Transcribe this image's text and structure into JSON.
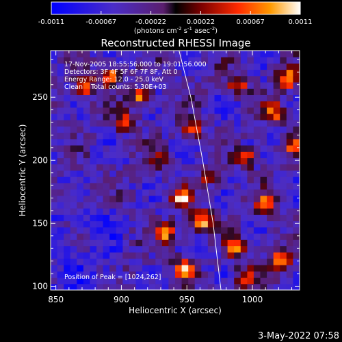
{
  "chart_data": {
    "type": "heatmap",
    "title": "Reconstructed RHESSI Image",
    "xlabel": "Heliocentric X (arcsec)",
    "ylabel": "Heliocentric Y (arcsec)",
    "xlim": [
      846,
      1036
    ],
    "ylim": [
      97,
      287
    ],
    "x_ticks": [
      850,
      900,
      950,
      1000
    ],
    "y_ticks": [
      100,
      150,
      200,
      250
    ],
    "colorbar": {
      "ticks": [
        "-0.0011",
        "-0.00067",
        "-0.00022",
        "0.00022",
        "0.00067",
        "0.0011"
      ],
      "unit_main": "(photons cm",
      "unit_sup1": "-2",
      "unit_mid1": " s",
      "unit_sup2": "-1",
      "unit_mid2": " asec",
      "unit_sup3": "-2",
      "unit_end": ")",
      "range": [
        -0.0011,
        0.0011
      ]
    },
    "annotations": {
      "time": "17-Nov-2005 18:55:56.000 to 19:01:56.000",
      "detectors": "Detectors: 3F 4F 5F 6F 7F 8F, Att 0",
      "energy": "Energy Range: 12.0 - 25.0 keV",
      "clean": "Clean    Total counts: 5.30E+03",
      "peak": "Position of Peak = [1024,262]"
    },
    "limb_curve": [
      [
        944,
        287
      ],
      [
        953,
        250
      ],
      [
        962,
        200
      ],
      [
        970,
        150
      ],
      [
        976,
        97
      ]
    ],
    "emission_sources": [
      {
        "x": 888,
        "y": 265,
        "value": 0.0009
      },
      {
        "x": 870,
        "y": 256,
        "value": 0.0007
      },
      {
        "x": 912,
        "y": 248,
        "value": 0.0008
      },
      {
        "x": 986,
        "y": 258,
        "value": 0.0006
      },
      {
        "x": 1024,
        "y": 262,
        "value": 0.0011
      },
      {
        "x": 1013,
        "y": 236,
        "value": 0.0008
      },
      {
        "x": 951,
        "y": 222,
        "value": 0.0006
      },
      {
        "x": 993,
        "y": 200,
        "value": 0.0006
      },
      {
        "x": 900,
        "y": 228,
        "value": 0.0005
      },
      {
        "x": 944,
        "y": 168,
        "value": 0.0009
      },
      {
        "x": 958,
        "y": 150,
        "value": 0.0011
      },
      {
        "x": 932,
        "y": 140,
        "value": 0.0008
      },
      {
        "x": 946,
        "y": 112,
        "value": 0.0008
      },
      {
        "x": 985,
        "y": 128,
        "value": 0.0007
      },
      {
        "x": 1008,
        "y": 163,
        "value": 0.0008
      },
      {
        "x": 1020,
        "y": 118,
        "value": 0.0009
      },
      {
        "x": 992,
        "y": 105,
        "value": 0.0006
      },
      {
        "x": 966,
        "y": 185,
        "value": 0.0005
      },
      {
        "x": 928,
        "y": 200,
        "value": 0.0004
      },
      {
        "x": 1030,
        "y": 210,
        "value": 0.0006
      }
    ]
  },
  "footer": {
    "date": "3-May-2022 07:58"
  }
}
